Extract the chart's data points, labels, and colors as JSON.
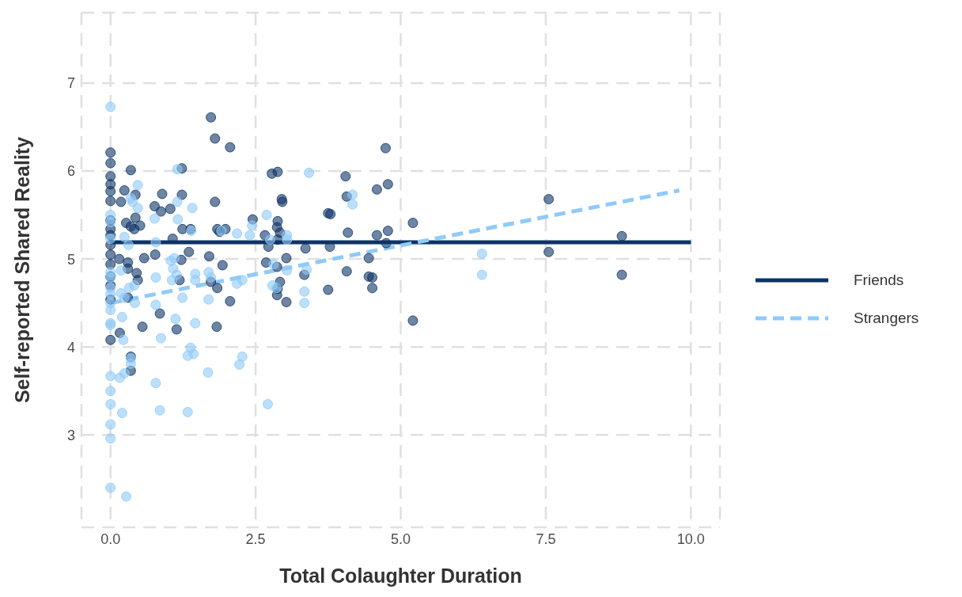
{
  "chart_data": {
    "type": "scatter",
    "xlabel": "Total Colaughter Duration",
    "ylabel": "Self-reported Shared Reality",
    "xlim": [
      -0.5,
      10.5
    ],
    "ylim": [
      1.95,
      7.8
    ],
    "xticks": [
      {
        "value": 0,
        "label": "0.0"
      },
      {
        "value": 2.5,
        "label": "2.5"
      },
      {
        "value": 5,
        "label": "5.0"
      },
      {
        "value": 7.5,
        "label": "7.5"
      },
      {
        "value": 10,
        "label": "10.0"
      }
    ],
    "yticks": [
      3,
      4,
      5,
      6,
      7
    ],
    "grid": true,
    "legend": "right",
    "series": [
      {
        "color": "#0d3466",
        "marker": "circle",
        "x": [
          0,
          0,
          0,
          0,
          0,
          0,
          0,
          0,
          0,
          0,
          0,
          0,
          0,
          0,
          0,
          0,
          0.35,
          0.24,
          0.43,
          0.18,
          0.43,
          0.27,
          0.35,
          0.51,
          0.41,
          0.15,
          0.58,
          0.45,
          0.3,
          0.3,
          0.47,
          0.3,
          0.55,
          0.16,
          0.35,
          0.35,
          0.89,
          0.76,
          0.87,
          1.03,
          1.23,
          1.23,
          1.07,
          1.24,
          1.38,
          1.22,
          1.35,
          1.19,
          0.85,
          1.14,
          0.77,
          1.73,
          1.8,
          2.06,
          1.8,
          1.84,
          1.7,
          1.88,
          1.98,
          1.73,
          1.84,
          1.93,
          1.83,
          2.06,
          2.45,
          2.78,
          2.88,
          2.95,
          2.96,
          2.66,
          2.88,
          2.87,
          2.92,
          2.72,
          2.88,
          2.68,
          2.87,
          3.03,
          2.92,
          2.88,
          2.87,
          3.03,
          3.36,
          3.34,
          3.75,
          3.79,
          3.78,
          3.75,
          4.05,
          4.07,
          4.09,
          4.07,
          4.45,
          4.45,
          4.51,
          4.51,
          4.74,
          4.59,
          4.78,
          4.59,
          4.78,
          4.75,
          5.21,
          5.21,
          7.55,
          7.55,
          8.81,
          8.81
        ],
        "values": [
          6.21,
          6.09,
          5.94,
          5.85,
          5.77,
          5.66,
          5.44,
          5.34,
          5.27,
          5.16,
          5.05,
          4.94,
          4.8,
          4.7,
          4.54,
          4.08,
          6.01,
          5.78,
          5.73,
          5.65,
          5.47,
          5.41,
          5.37,
          5.38,
          5.34,
          5.0,
          5.01,
          4.84,
          4.96,
          4.89,
          4.76,
          4.56,
          4.23,
          4.16,
          3.89,
          3.73,
          5.74,
          5.6,
          5.54,
          5.57,
          5.73,
          6.03,
          5.23,
          5.34,
          5.34,
          4.99,
          5.08,
          4.76,
          4.38,
          4.2,
          5.05,
          6.61,
          6.37,
          6.27,
          5.65,
          5.34,
          5.03,
          5.31,
          5.34,
          4.74,
          4.67,
          4.93,
          4.23,
          4.52,
          5.45,
          5.97,
          5.99,
          5.68,
          5.65,
          5.27,
          5.43,
          5.36,
          5.3,
          5.14,
          5.22,
          4.96,
          4.91,
          5.01,
          4.74,
          4.66,
          4.59,
          4.51,
          5.12,
          4.82,
          5.52,
          5.51,
          5.14,
          4.65,
          5.94,
          5.71,
          5.3,
          4.86,
          5.01,
          4.8,
          4.79,
          4.67,
          6.26,
          5.79,
          5.85,
          5.27,
          5.32,
          5.18,
          5.41,
          4.3,
          5.68,
          5.08,
          5.26,
          4.82
        ]
      },
      {
        "color": "#90caf9",
        "marker": "circle",
        "x": [
          0,
          0,
          0,
          0,
          0,
          0,
          0,
          0,
          0,
          0,
          0,
          0,
          0,
          0,
          0,
          0,
          0,
          0,
          0.27,
          0.2,
          0.16,
          0.24,
          0.35,
          0.35,
          0.2,
          0.18,
          0.24,
          0.32,
          0.41,
          0.42,
          0.22,
          0.24,
          0.31,
          0.35,
          0.38,
          0.47,
          0.47,
          0.18,
          0.78,
          0.85,
          0.87,
          0.78,
          0.78,
          0.78,
          0.76,
          1.04,
          1.1,
          1.08,
          1.06,
          1.14,
          1.12,
          1.15,
          1.15,
          1.16,
          1.24,
          1.41,
          1.39,
          1.46,
          1.46,
          1.46,
          1.38,
          1.43,
          1.33,
          1.33,
          1.68,
          1.69,
          1.69,
          1.73,
          1.91,
          2.18,
          2.27,
          2.18,
          2.22,
          2.27,
          2.4,
          2.44,
          2.69,
          2.75,
          2.81,
          2.79,
          2.86,
          2.71,
          3.04,
          3.04,
          3.04,
          3.38,
          3.34,
          3.34,
          3.42,
          4.17,
          4.17,
          6.4,
          6.4
        ],
        "values": [
          6.73,
          5.5,
          5.42,
          5.23,
          4.85,
          4.79,
          4.67,
          4.6,
          4.5,
          4.42,
          4.27,
          4.25,
          3.67,
          3.5,
          3.35,
          3.12,
          2.96,
          2.4,
          2.3,
          3.25,
          3.65,
          3.7,
          3.81,
          3.87,
          4.34,
          4.61,
          4.56,
          4.67,
          4.7,
          4.5,
          4.08,
          5.25,
          5.16,
          5.69,
          5.65,
          5.84,
          5.58,
          4.87,
          3.59,
          3.28,
          4.1,
          4.48,
          4.79,
          5.19,
          5.46,
          4.98,
          5.01,
          4.89,
          4.76,
          4.82,
          4.32,
          6.02,
          5.65,
          5.45,
          4.56,
          5.58,
          5.32,
          4.83,
          4.76,
          4.27,
          3.99,
          3.92,
          3.9,
          3.26,
          3.71,
          4.54,
          4.85,
          4.79,
          5.32,
          4.72,
          4.76,
          5.29,
          3.8,
          3.89,
          5.27,
          5.38,
          5.5,
          5.22,
          4.94,
          4.7,
          4.67,
          3.35,
          5.27,
          5.22,
          4.87,
          4.88,
          4.63,
          4.5,
          5.98,
          5.73,
          5.62,
          5.06,
          4.82
        ]
      },
      {
        "type": "line",
        "name": "Friends",
        "color": "#0d3466",
        "line_style": "solid",
        "x": [
          0,
          10
        ],
        "values": [
          5.19,
          5.19
        ]
      },
      {
        "type": "line",
        "name": "Strangers",
        "color": "#90caf9",
        "line_style": "dashed",
        "x": [
          0,
          9.8
        ],
        "values": [
          4.5,
          5.78
        ]
      }
    ]
  }
}
